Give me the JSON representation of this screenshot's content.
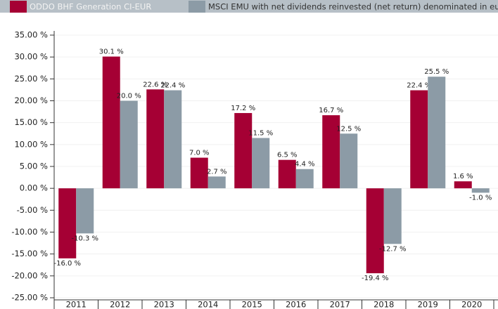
{
  "chart_data": {
    "type": "bar",
    "categories": [
      "2011",
      "2012",
      "2013",
      "2014",
      "2015",
      "2016",
      "2017",
      "2018",
      "2019",
      "2020"
    ],
    "series": [
      {
        "name": "ODDO BHF Generation CI-EUR",
        "color": "#a50034",
        "values": [
          -16.0,
          30.1,
          22.6,
          7.0,
          17.2,
          6.5,
          16.7,
          -19.4,
          22.4,
          1.6
        ],
        "value_labels": [
          "-16.0 %",
          "30.1 %",
          "22.6 %",
          "7.0 %",
          "17.2 %",
          "6.5 %",
          "16.7 %",
          "-19.4 %",
          "22.4 %",
          "1.6 %"
        ]
      },
      {
        "name": "MSCI EMU with net dividends reinvested (net return) denominated in euro",
        "color": "#8c9ba6",
        "values": [
          -10.3,
          20.0,
          22.4,
          2.7,
          11.5,
          4.4,
          12.5,
          -12.7,
          25.5,
          -1.0
        ],
        "value_labels": [
          "-10.3 %",
          "20.0 %",
          "22.4 %",
          "2.7 %",
          "11.5 %",
          "4.4 %",
          "12.5 %",
          "-12.7 %",
          "25.5 %",
          "-1.0 %"
        ]
      }
    ],
    "ylim": [
      -25,
      35
    ],
    "yticks": [
      {
        "value": 35,
        "label": "35.00 %"
      },
      {
        "value": 30,
        "label": "30.00 %"
      },
      {
        "value": 25,
        "label": "25.00 %"
      },
      {
        "value": 20,
        "label": "20.00 %"
      },
      {
        "value": 15,
        "label": "15.00 %"
      },
      {
        "value": 10,
        "label": "10.00 %"
      },
      {
        "value": 5,
        "label": "5.00 %"
      },
      {
        "value": 0,
        "label": "0.00 %"
      },
      {
        "value": -5,
        "label": "-5.00 %"
      },
      {
        "value": -10,
        "label": "-10.00 %"
      },
      {
        "value": -15,
        "label": "-15.00 %"
      },
      {
        "value": -20,
        "label": "-20.00 %"
      },
      {
        "value": -25,
        "label": "-25.00 %"
      }
    ],
    "grid": true,
    "legend": "top"
  }
}
